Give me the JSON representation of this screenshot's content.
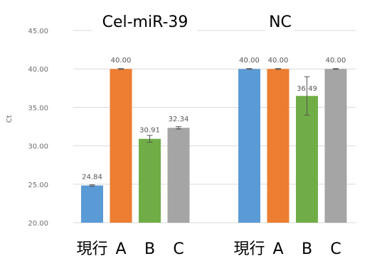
{
  "chart_data": {
    "type": "bar",
    "title": "",
    "xlabel": "",
    "ylabel": "Ct",
    "ylim": [
      20,
      45
    ],
    "yticks": [
      "20.00",
      "25.00",
      "30.00",
      "35.00",
      "40.00",
      "45.00"
    ],
    "grid": true,
    "groups": [
      {
        "title": "Cel-miR-39",
        "categories": [
          "現行",
          "A",
          "B",
          "C"
        ],
        "values": [
          24.84,
          40.0,
          30.91,
          32.34
        ],
        "labels": [
          "24.84",
          "40.00",
          "30.91",
          "32.34"
        ],
        "errors": [
          0.08,
          0.05,
          0.45,
          0.15
        ]
      },
      {
        "title": "NC",
        "categories": [
          "現行",
          "A",
          "B",
          "C"
        ],
        "values": [
          40.0,
          40.0,
          36.49,
          40.0
        ],
        "labels": [
          "40.00",
          "40.00",
          "36.49",
          "40.00"
        ],
        "errors": [
          0.05,
          0.05,
          2.5,
          0.05
        ]
      }
    ],
    "colors": [
      "#5b9bd5",
      "#ed7d31",
      "#70ad47",
      "#a5a5a5"
    ]
  }
}
